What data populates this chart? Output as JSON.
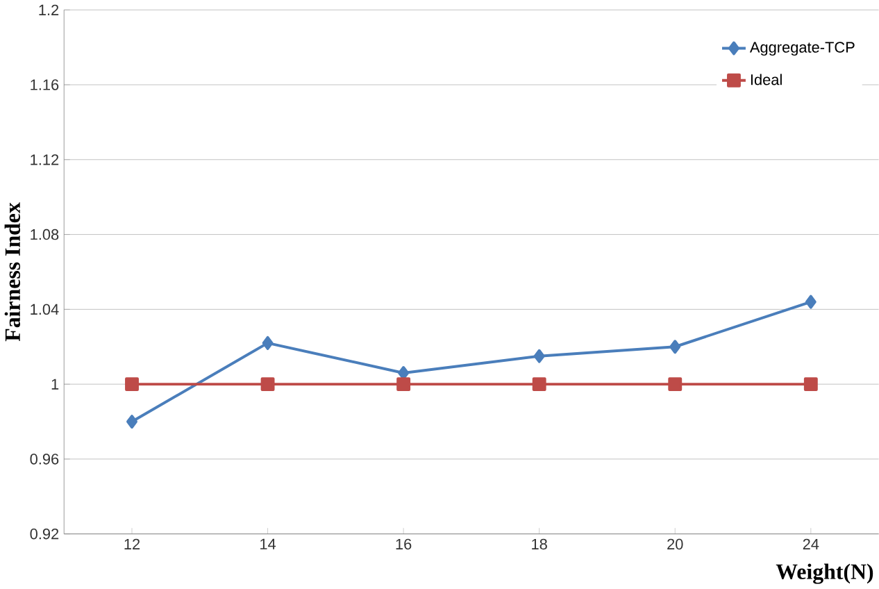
{
  "chart_data": {
    "type": "line",
    "xlabel": "Weight(N)",
    "ylabel": "Fairness Index",
    "categories": [
      "12",
      "14",
      "16",
      "18",
      "20",
      "24"
    ],
    "series": [
      {
        "name": "Aggregate-TCP",
        "color": "#4a7ebb",
        "marker": "diamond",
        "values": [
          0.98,
          1.022,
          1.006,
          1.015,
          1.02,
          1.044
        ]
      },
      {
        "name": "Ideal",
        "color": "#be4b48",
        "marker": "square",
        "values": [
          1,
          1,
          1,
          1,
          1,
          1
        ]
      }
    ],
    "ylim": [
      0.92,
      1.2
    ],
    "yticks": [
      0.92,
      0.96,
      1,
      1.04,
      1.08,
      1.12,
      1.16,
      1.2
    ],
    "grid": "y",
    "legend": "top right"
  }
}
